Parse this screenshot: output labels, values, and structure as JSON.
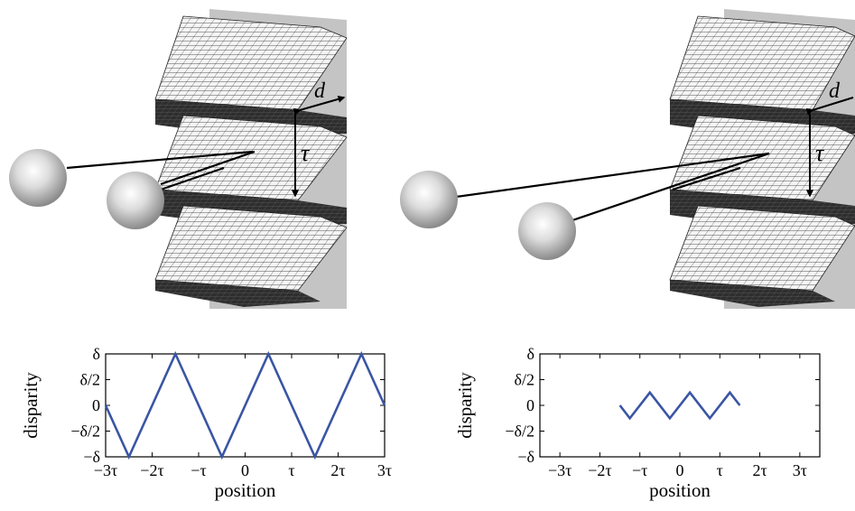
{
  "scenes": [
    {
      "label_d": "d",
      "label_tau": "τ"
    },
    {
      "label_d": "d",
      "label_tau": "τ"
    }
  ],
  "chart_data": [
    {
      "type": "line",
      "xlabel": "position",
      "ylabel": "disparity",
      "xlim": [
        -3,
        3
      ],
      "ylim": [
        -1,
        1
      ],
      "x_ticks": [
        -3,
        -2,
        -1,
        0,
        1,
        2,
        3
      ],
      "x_tick_labels": [
        "−3τ",
        "−2τ",
        "−τ",
        "0",
        "τ",
        "2τ",
        "3τ"
      ],
      "y_ticks": [
        1,
        0.5,
        0,
        -0.5,
        -1
      ],
      "y_tick_labels": [
        "δ",
        "δ/2",
        "0",
        "−δ/2",
        "−δ"
      ],
      "line_color": "#3a55a4",
      "series": [
        {
          "x": [
            -3,
            -2.5,
            -1.5,
            -0.5,
            0.5,
            1.5,
            2.5,
            3
          ],
          "y": [
            0,
            -1,
            1,
            -1,
            1,
            -1,
            1,
            0
          ]
        }
      ]
    },
    {
      "type": "line",
      "xlabel": "position",
      "ylabel": "disparity",
      "xlim": [
        -3.5,
        3.5
      ],
      "ylim": [
        -1,
        1
      ],
      "x_ticks": [
        -3,
        -2,
        -1,
        0,
        1,
        2,
        3
      ],
      "x_tick_labels": [
        "−3τ",
        "−2τ",
        "−τ",
        "0",
        "τ",
        "2τ",
        "3τ"
      ],
      "y_ticks": [
        1,
        0.5,
        0,
        -0.5,
        -1
      ],
      "y_tick_labels": [
        "δ",
        "δ/2",
        "0",
        "−δ/2",
        "−δ"
      ],
      "line_color": "#3a55a4",
      "series": [
        {
          "x": [
            -1.5,
            -1.25,
            -0.75,
            -0.25,
            0.25,
            0.75,
            1.25,
            1.5
          ],
          "y": [
            0,
            -0.25,
            0.25,
            -0.25,
            0.25,
            -0.25,
            0.25,
            0
          ]
        }
      ]
    }
  ]
}
